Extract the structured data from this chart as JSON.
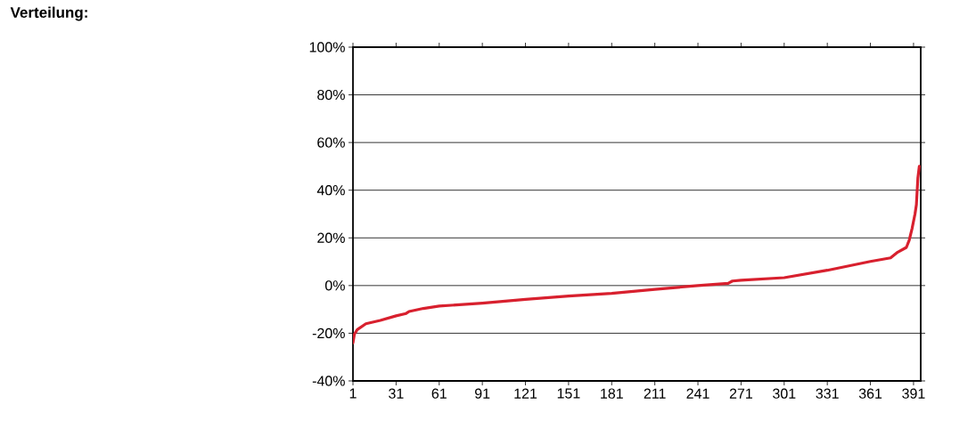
{
  "chart_data": {
    "type": "line",
    "title": "Verteilung:",
    "x": [
      1,
      2,
      4,
      10,
      20,
      31,
      38,
      40,
      50,
      61,
      91,
      121,
      151,
      181,
      211,
      241,
      262,
      265,
      271,
      301,
      331,
      361,
      375,
      380,
      386,
      388,
      390,
      392,
      393,
      394,
      395
    ],
    "series": [
      {
        "color": "#d8202e",
        "values": [
          -24,
          -20.4,
          -18.5,
          -16,
          -14.6,
          -12.7,
          -11.7,
          -10.9,
          -9.6,
          -8.6,
          -7.4,
          -5.8,
          -4.4,
          -3.3,
          -1.6,
          0,
          0.9,
          1.9,
          2.2,
          3.3,
          6.4,
          10.1,
          11.6,
          14,
          16,
          19,
          24,
          30,
          34,
          45,
          50
        ]
      }
    ],
    "xlim": [
      1,
      396
    ],
    "xticks": [
      1,
      31,
      61,
      91,
      121,
      151,
      181,
      211,
      241,
      271,
      301,
      331,
      361,
      391
    ],
    "ylim": [
      -40,
      100
    ],
    "yticks": [
      {
        "value": -40,
        "label": "-40%"
      },
      {
        "value": -20,
        "label": "-20%"
      },
      {
        "value": 0,
        "label": "0%"
      },
      {
        "value": 20,
        "label": "20%"
      },
      {
        "value": 40,
        "label": "40%"
      },
      {
        "value": 60,
        "label": "60%"
      },
      {
        "value": 80,
        "label": "80%"
      },
      {
        "value": 100,
        "label": "100%"
      }
    ],
    "grid": "y",
    "line_style": "solid"
  }
}
